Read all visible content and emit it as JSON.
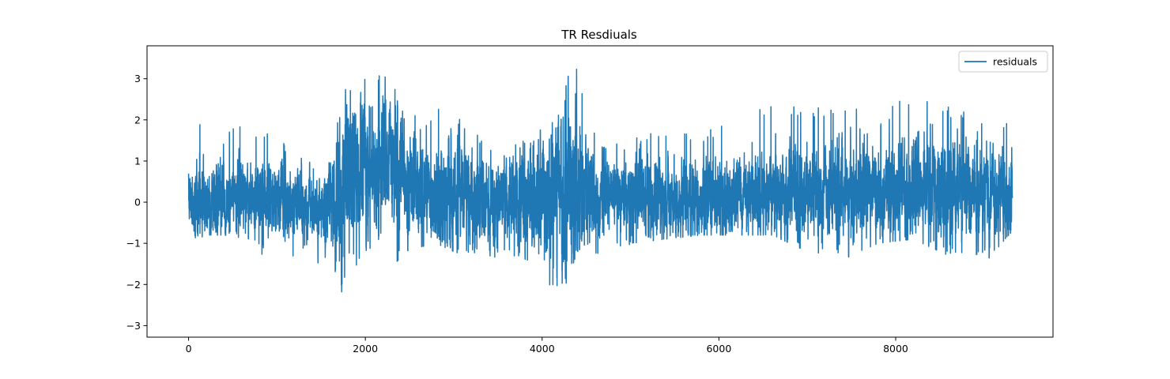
{
  "chart_data": {
    "type": "line",
    "title": "TR Resdiuals",
    "xlabel": "",
    "ylabel": "",
    "xlim": [
      -470,
      9780
    ],
    "ylim": [
      -3.28,
      3.8
    ],
    "x_ticks": [
      0,
      2000,
      4000,
      6000,
      8000
    ],
    "x_tick_labels": [
      "0",
      "2000",
      "4000",
      "6000",
      "8000"
    ],
    "y_ticks": [
      -3,
      -2,
      -1,
      0,
      1,
      2,
      3
    ],
    "y_tick_labels": [
      "−3",
      "−2",
      "−1",
      "0",
      "1",
      "2",
      "3"
    ],
    "grid": false,
    "legend_position": "top-right",
    "series": [
      {
        "name": "residuals",
        "color": "#1f77b4",
        "n_points": 9321,
        "x_start": 0,
        "x_end": 9320,
        "profile": [
          [
            0,
            0.0,
            0.3,
            -0.8,
            0.85
          ],
          [
            100,
            0.15,
            0.55,
            -0.9,
            2.15
          ],
          [
            200,
            0.1,
            0.45,
            -0.8,
            2.0
          ],
          [
            400,
            0.05,
            0.4,
            -0.8,
            1.9
          ],
          [
            700,
            0.1,
            0.45,
            -0.9,
            1.8
          ],
          [
            900,
            0.05,
            0.45,
            -1.5,
            1.7
          ],
          [
            1100,
            0.0,
            0.45,
            -1.4,
            1.4
          ],
          [
            1300,
            0.0,
            0.4,
            -1.2,
            1.2
          ],
          [
            1500,
            -0.05,
            0.45,
            -1.8,
            0.9
          ],
          [
            1650,
            -0.2,
            0.55,
            -1.6,
            1.0
          ],
          [
            1720,
            0.2,
            1.0,
            -2.3,
            3.25
          ],
          [
            1800,
            0.4,
            0.9,
            -1.5,
            2.9
          ],
          [
            1950,
            0.8,
            0.8,
            -1.9,
            3.05
          ],
          [
            2100,
            0.9,
            0.7,
            -0.9,
            2.9
          ],
          [
            2300,
            0.9,
            0.8,
            -1.7,
            3.5
          ],
          [
            2450,
            0.6,
            0.7,
            -1.2,
            2.4
          ],
          [
            2600,
            0.3,
            0.6,
            -1.1,
            2.0
          ],
          [
            2800,
            0.1,
            0.55,
            -1.0,
            2.2
          ],
          [
            2900,
            0.2,
            0.7,
            -1.1,
            3.05
          ],
          [
            3100,
            0.05,
            0.55,
            -1.3,
            1.8
          ],
          [
            3400,
            0.0,
            0.55,
            -1.4,
            1.6
          ],
          [
            3700,
            0.0,
            0.55,
            -1.3,
            1.5
          ],
          [
            3950,
            0.0,
            0.6,
            -1.5,
            1.5
          ],
          [
            4100,
            -0.2,
            0.9,
            -2.95,
            3.0
          ],
          [
            4200,
            0.3,
            0.9,
            -2.4,
            2.8
          ],
          [
            4400,
            0.5,
            0.9,
            -1.2,
            3.35
          ],
          [
            4500,
            0.2,
            0.6,
            -1.0,
            2.0
          ],
          [
            4700,
            0.05,
            0.45,
            -1.7,
            1.4
          ],
          [
            5000,
            0.05,
            0.45,
            -1.0,
            1.6
          ],
          [
            5400,
            0.05,
            0.45,
            -0.9,
            1.8
          ],
          [
            5800,
            0.05,
            0.45,
            -0.8,
            1.7
          ],
          [
            6200,
            0.1,
            0.45,
            -0.8,
            2.0
          ],
          [
            6600,
            0.2,
            0.5,
            -0.8,
            2.4
          ],
          [
            7000,
            0.2,
            0.5,
            -1.2,
            2.3
          ],
          [
            7400,
            0.25,
            0.55,
            -1.4,
            2.3
          ],
          [
            7800,
            0.3,
            0.6,
            -1.0,
            2.5
          ],
          [
            8200,
            0.3,
            0.6,
            -0.9,
            2.5
          ],
          [
            8600,
            0.25,
            0.6,
            -1.3,
            2.35
          ],
          [
            9000,
            0.2,
            0.55,
            -1.5,
            2.0
          ],
          [
            9320,
            0.15,
            0.5,
            -0.7,
            2.0
          ]
        ]
      }
    ]
  }
}
